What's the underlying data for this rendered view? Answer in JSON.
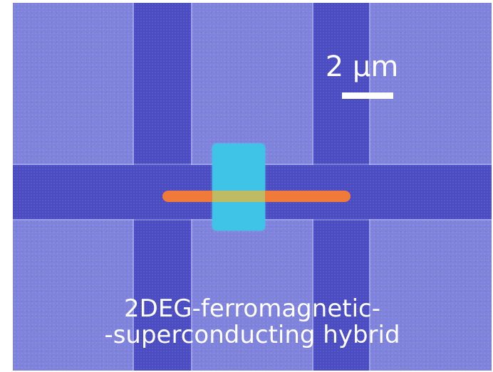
{
  "image": {
    "subject": "microscope-micrograph",
    "colors": {
      "background": "#7f83dc",
      "strips": "#4a4cbf",
      "pad": "#3fc3e6",
      "bar": "#f07a3a",
      "text": "#ffffff"
    }
  },
  "scale": {
    "label": "2 μm"
  },
  "caption": {
    "line1": "2DEG-ferromagnetic-",
    "line2": "-superconducting hybrid"
  }
}
